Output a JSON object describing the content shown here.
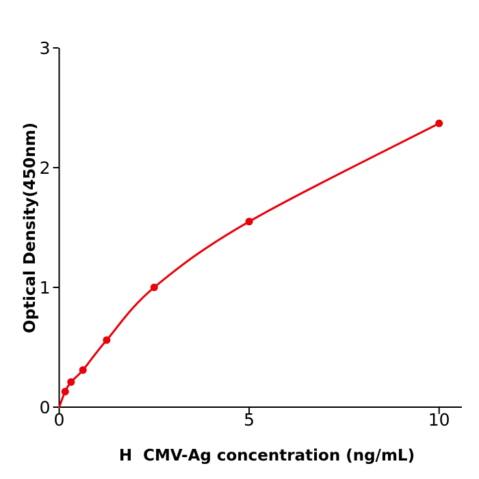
{
  "figure": {
    "background": "#ffffff",
    "axis_color": "#000000",
    "accent_red": "#e8000b"
  },
  "chart_data": {
    "type": "scatter",
    "title": "",
    "xlabel": "H  CMV-Ag concentration (ng/mL)",
    "ylabel": "Optical Density(450nm)",
    "xlim": [
      0,
      10.6
    ],
    "ylim": [
      0,
      3
    ],
    "x_ticks": {
      "values": [
        0,
        5,
        10
      ],
      "labels": [
        "0",
        "5",
        "10"
      ]
    },
    "y_ticks": {
      "values": [
        0,
        1,
        2,
        3
      ],
      "labels": [
        "0",
        "1",
        "2",
        "3"
      ]
    },
    "grid": false,
    "legend": false,
    "axis_color": "#000000",
    "background": "#ffffff",
    "series": [
      {
        "name": "standard-curve",
        "x": [
          0.156,
          0.3125,
          0.625,
          1.25,
          2.5,
          5,
          10
        ],
        "y": [
          0.13,
          0.21,
          0.31,
          0.56,
          1.0,
          1.55,
          2.37
        ],
        "curve_start_at_origin": true,
        "color": "#e8000b",
        "marker": "filled-circle",
        "line": "smooth-fit",
        "line_width": 3,
        "marker_radius": 5.5
      }
    ]
  }
}
